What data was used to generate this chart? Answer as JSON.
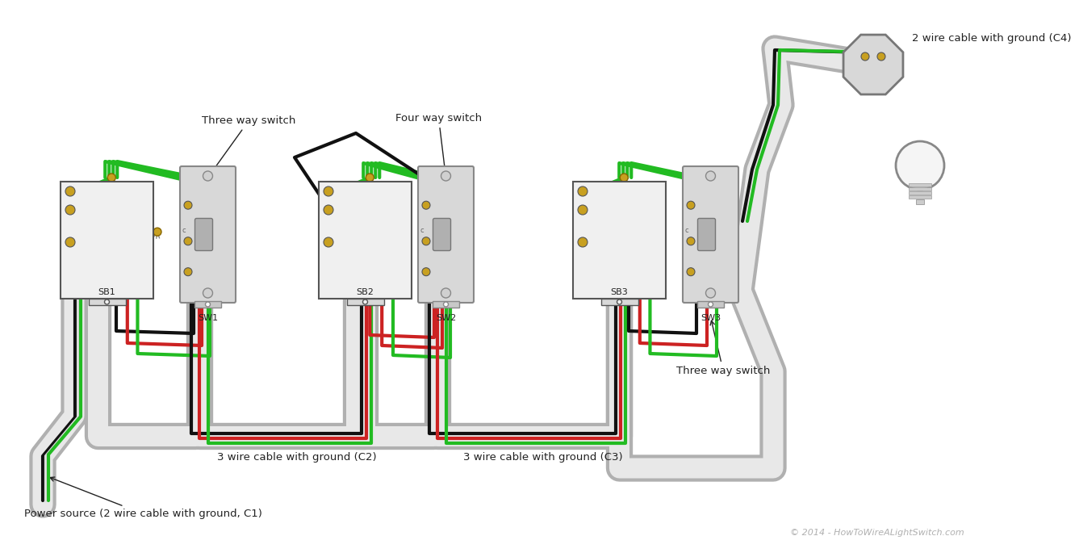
{
  "bg_color": "#ffffff",
  "wire_black": "#111111",
  "wire_green": "#22bb22",
  "wire_red": "#cc2222",
  "wire_white": "#dddddd",
  "conduit_outer": "#b0b0b0",
  "conduit_inner": "#e8e8e8",
  "box_fill": "#f0f0f0",
  "box_stroke": "#555555",
  "plate_fill": "#d8d8d8",
  "plate_stroke": "#888888",
  "toggle_fill": "#b0b0b0",
  "gold": "#c8a020",
  "gold_screw": "#d4a030",
  "text_dark": "#222222",
  "text_copy": "#b0b0b0",
  "copyright_text": "© 2014 - HowToWireALightSwitch.com",
  "label_sw1": "Three way switch",
  "label_sw2": "Four way switch",
  "label_sw3": "Three way switch",
  "label_c2": "3 wire cable with ground (C2)",
  "label_c3": "3 wire cable with ground (C3)",
  "label_c4": "2 wire cable with ground (C4)",
  "label_power": "Power source (2 wire cable with ground, C1)",
  "lbl_sb1": "SB1",
  "lbl_sw1": "SW1",
  "lbl_sb2": "SB2",
  "lbl_sw2": "SW2",
  "lbl_sb3": "SB3",
  "lbl_sw3": "SW3"
}
